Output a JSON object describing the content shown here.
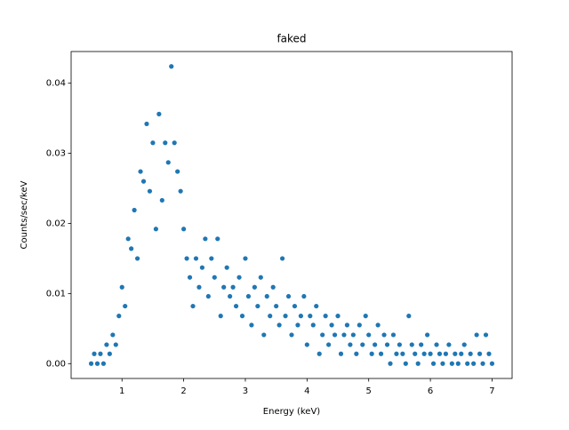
{
  "chart_data": {
    "type": "scatter",
    "title": "faked",
    "xlabel": "Energy (keV)",
    "ylabel": "Counts/sec/keV",
    "color": "#1f77b4",
    "x": [
      0.5,
      0.55,
      0.6,
      0.65,
      0.7,
      0.75,
      0.8,
      0.85,
      0.9,
      0.95,
      1.0,
      1.05,
      1.1,
      1.15,
      1.2,
      1.25,
      1.3,
      1.35,
      1.4,
      1.45,
      1.5,
      1.55,
      1.6,
      1.65,
      1.7,
      1.75,
      1.8,
      1.85,
      1.9,
      1.95,
      2.0,
      2.05,
      2.1,
      2.15,
      2.2,
      2.25,
      2.3,
      2.35,
      2.4,
      2.45,
      2.5,
      2.55,
      2.6,
      2.65,
      2.7,
      2.75,
      2.8,
      2.85,
      2.9,
      2.95,
      3.0,
      3.05,
      3.1,
      3.15,
      3.2,
      3.25,
      3.3,
      3.35,
      3.4,
      3.45,
      3.5,
      3.55,
      3.6,
      3.65,
      3.7,
      3.75,
      3.8,
      3.85,
      3.9,
      3.95,
      4.0,
      4.05,
      4.1,
      4.15,
      4.2,
      4.25,
      4.3,
      4.35,
      4.4,
      4.45,
      4.5,
      4.55,
      4.6,
      4.65,
      4.7,
      4.75,
      4.8,
      4.85,
      4.9,
      4.95,
      5.0,
      5.05,
      5.1,
      5.15,
      5.2,
      5.25,
      5.3,
      5.35,
      5.4,
      5.45,
      5.5,
      5.55,
      5.6,
      5.65,
      5.7,
      5.75,
      5.8,
      5.85,
      5.9,
      5.95,
      6.0,
      6.05,
      6.1,
      6.15,
      6.2,
      6.25,
      6.3,
      6.35,
      6.4,
      6.45,
      6.5,
      6.55,
      6.6,
      6.65,
      6.7,
      6.75,
      6.8,
      6.85,
      6.9,
      6.95,
      7.0
    ],
    "values": [
      0,
      0.0014,
      0,
      0.0014,
      0,
      0.0027,
      0.0014,
      0.0041,
      0.0027,
      0.0068,
      0.0109,
      0.0082,
      0.0178,
      0.0164,
      0.0219,
      0.015,
      0.0274,
      0.026,
      0.0342,
      0.0246,
      0.0315,
      0.0192,
      0.0356,
      0.0233,
      0.0315,
      0.0287,
      0.0424,
      0.0315,
      0.0274,
      0.0246,
      0.0192,
      0.015,
      0.0123,
      0.0082,
      0.015,
      0.0109,
      0.0137,
      0.0178,
      0.0096,
      0.015,
      0.0123,
      0.0178,
      0.0068,
      0.0109,
      0.0137,
      0.0096,
      0.0109,
      0.0082,
      0.0123,
      0.0068,
      0.015,
      0.0096,
      0.0055,
      0.0109,
      0.0082,
      0.0123,
      0.0041,
      0.0096,
      0.0068,
      0.0109,
      0.0082,
      0.0055,
      0.015,
      0.0068,
      0.0096,
      0.0041,
      0.0082,
      0.0055,
      0.0068,
      0.0096,
      0.0027,
      0.0068,
      0.0055,
      0.0082,
      0.0014,
      0.0041,
      0.0068,
      0.0027,
      0.0055,
      0.0041,
      0.0068,
      0.0014,
      0.0041,
      0.0055,
      0.0027,
      0.0041,
      0.0014,
      0.0055,
      0.0027,
      0.0068,
      0.0041,
      0.0014,
      0.0027,
      0.0055,
      0.0014,
      0.0041,
      0.0027,
      0,
      0.0041,
      0.0014,
      0.0027,
      0.0014,
      0,
      0.0068,
      0.0027,
      0.0014,
      0,
      0.0027,
      0.0014,
      0.0041,
      0.0014,
      0,
      0.0027,
      0.0014,
      0,
      0.0014,
      0.0027,
      0,
      0.0014,
      0,
      0.0014,
      0.0027,
      0,
      0.0014,
      0,
      0.0041,
      0.0014,
      0,
      0.0041,
      0.0014,
      0
    ],
    "xlim": [
      0.175,
      7.325
    ],
    "ylim": [
      -0.00212,
      0.04452
    ],
    "xticks": [
      1,
      2,
      3,
      4,
      5,
      6,
      7
    ],
    "yticks": [
      {
        "value": 0,
        "label": "0.00"
      },
      {
        "value": 0.01,
        "label": "0.01"
      },
      {
        "value": 0.02,
        "label": "0.02"
      },
      {
        "value": 0.03,
        "label": "0.03"
      },
      {
        "value": 0.04,
        "label": "0.04"
      }
    ]
  }
}
